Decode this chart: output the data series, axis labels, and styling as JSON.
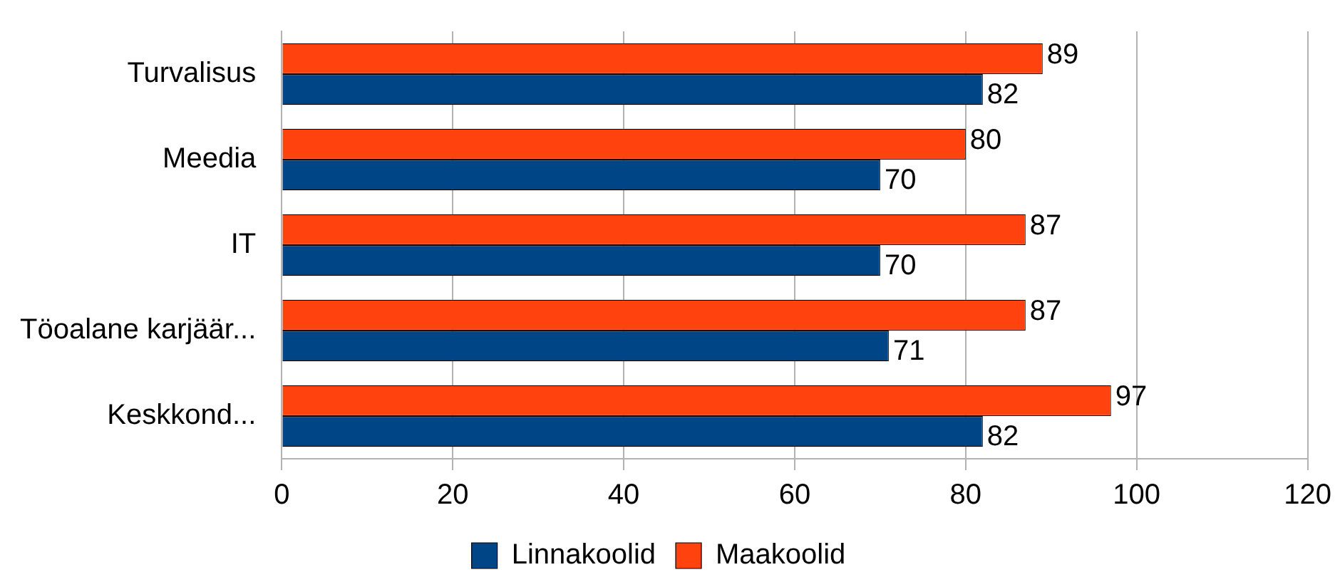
{
  "chart_data": {
    "type": "bar",
    "orientation": "horizontal",
    "categories": [
      "Turvalisus",
      "Meedia",
      "IT",
      "Töoalane karjäär...",
      "Keskkond..."
    ],
    "series": [
      {
        "name": "Maakoolid",
        "color": "#ff420e",
        "values": [
          89,
          80,
          87,
          87,
          97
        ]
      },
      {
        "name": "Linnakoolid",
        "color": "#004586",
        "values": [
          82,
          70,
          70,
          71,
          82
        ]
      }
    ],
    "xlim": [
      0,
      120
    ],
    "xticks": [
      0,
      20,
      40,
      60,
      80,
      100,
      120
    ],
    "grid": "x",
    "legend": "bottom",
    "data_labels": true
  }
}
